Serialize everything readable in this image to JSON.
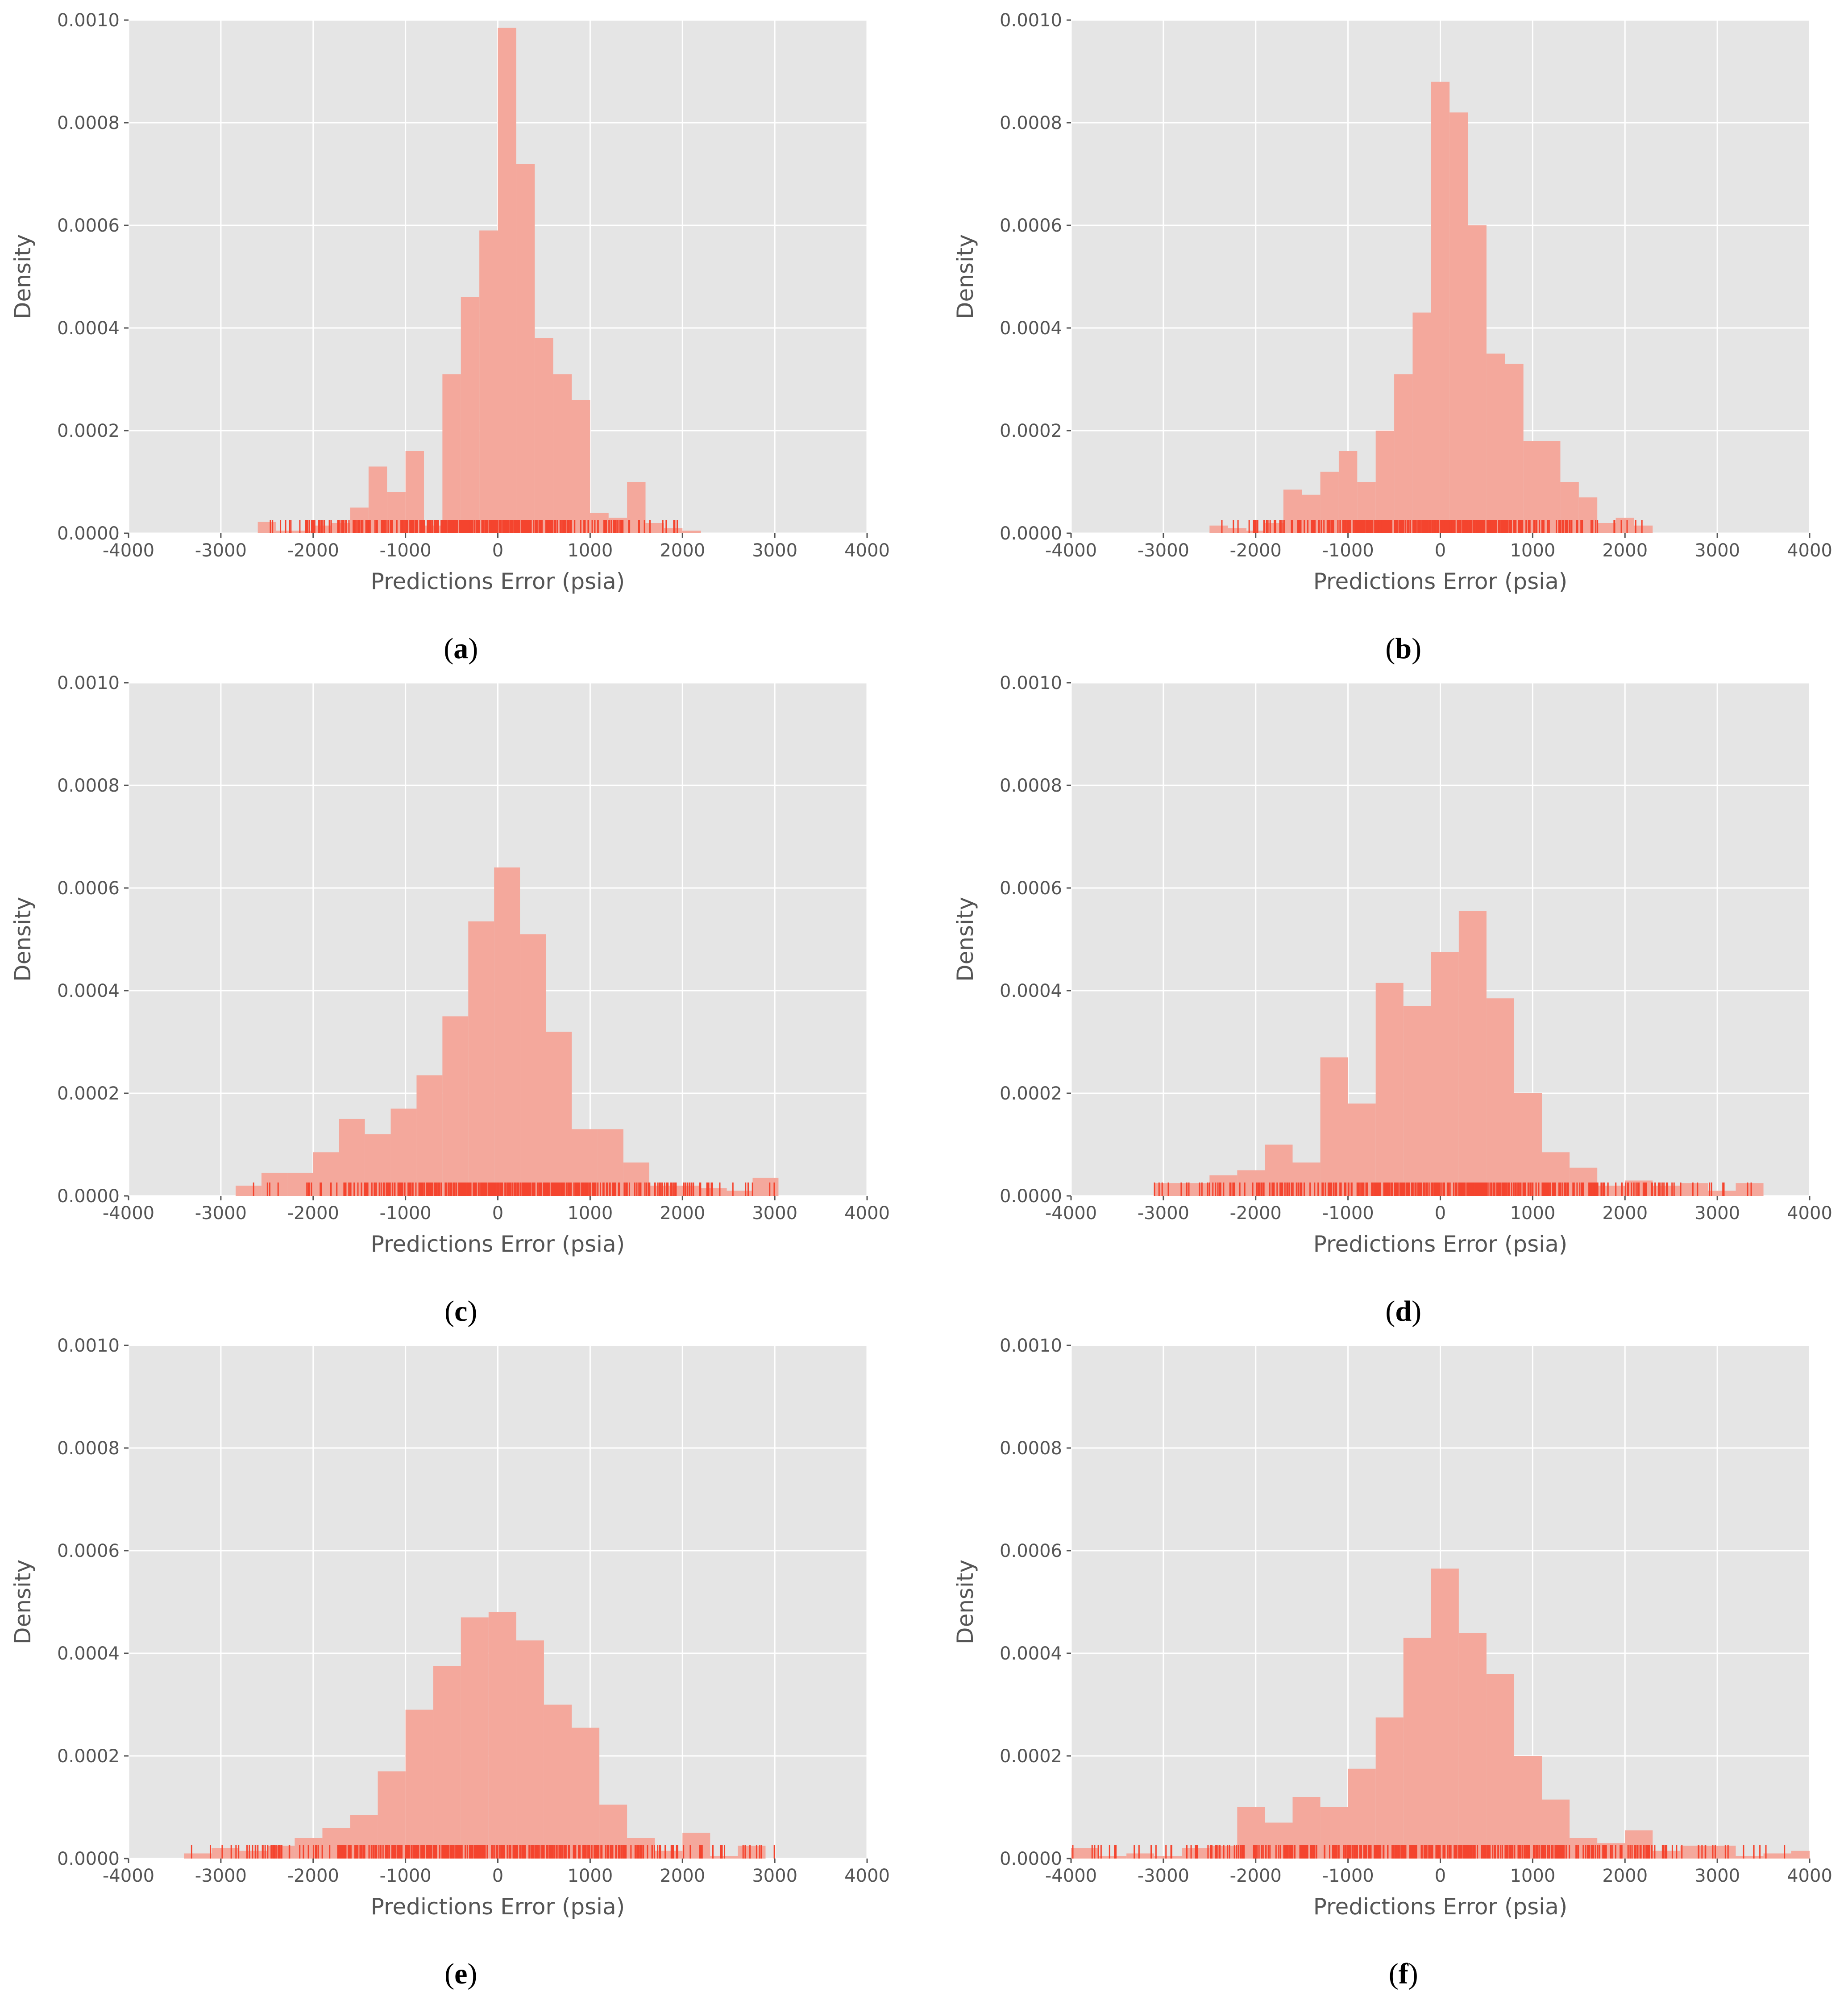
{
  "colors": {
    "plot_background": "#e5e5e5",
    "grid": "#ffffff",
    "bar_fill": "#f4a89c",
    "rug": "#f4442e",
    "text": "#555555"
  },
  "chart_data": [
    {
      "type": "bar",
      "panel": "a",
      "xlabel": "Predictions Error (psia)",
      "ylabel": "Density",
      "xlim": [
        -4000,
        4000
      ],
      "ylim": [
        0,
        0.001
      ],
      "xticks": [
        "-4000",
        "-3000",
        "-2000",
        "-1000",
        "0",
        "1000",
        "2000",
        "3000",
        "4000"
      ],
      "yticks": [
        "0.0000",
        "0.0002",
        "0.0004",
        "0.0006",
        "0.0008",
        "0.0010"
      ],
      "grid": true,
      "bin_width": 200,
      "bins": [
        [
          -2500,
          2.2e-05
        ],
        [
          -2300,
          5e-06
        ],
        [
          -2100,
          5e-06
        ],
        [
          -1900,
          1.5e-05
        ],
        [
          -1700,
          2e-05
        ],
        [
          -1500,
          5e-05
        ],
        [
          -1300,
          0.00013
        ],
        [
          -1100,
          8e-05
        ],
        [
          -900,
          0.00016
        ],
        [
          -700,
          1.5e-05
        ],
        [
          -500,
          0.00031
        ],
        [
          -300,
          0.00046
        ],
        [
          -100,
          0.00059
        ],
        [
          100,
          0.000985
        ],
        [
          300,
          0.00072
        ],
        [
          500,
          0.00038
        ],
        [
          700,
          0.00031
        ],
        [
          900,
          0.00026
        ],
        [
          1100,
          4e-05
        ],
        [
          1300,
          3e-05
        ],
        [
          1500,
          0.0001
        ],
        [
          1700,
          2e-05
        ],
        [
          1900,
          1e-05
        ],
        [
          2100,
          5e-06
        ]
      ],
      "rug_range": [
        -2500,
        2000
      ]
    },
    {
      "type": "bar",
      "panel": "b",
      "xlabel": "Predictions Error (psia)",
      "ylabel": "Density",
      "xlim": [
        -4000,
        4000
      ],
      "ylim": [
        0,
        0.001
      ],
      "xticks": [
        "-4000",
        "-3000",
        "-2000",
        "-1000",
        "0",
        "1000",
        "2000",
        "3000",
        "4000"
      ],
      "yticks": [
        "0.0000",
        "0.0002",
        "0.0004",
        "0.0006",
        "0.0008",
        "0.0010"
      ],
      "grid": true,
      "bin_width": 200,
      "bins": [
        [
          -2400,
          1.5e-05
        ],
        [
          -2200,
          1e-05
        ],
        [
          -2000,
          5e-06
        ],
        [
          -1800,
          2e-05
        ],
        [
          -1600,
          8.5e-05
        ],
        [
          -1400,
          7.5e-05
        ],
        [
          -1200,
          0.00012
        ],
        [
          -1000,
          0.00016
        ],
        [
          -800,
          0.0001
        ],
        [
          -600,
          0.0002
        ],
        [
          -400,
          0.00031
        ],
        [
          -200,
          0.00043
        ],
        [
          0,
          0.00088
        ],
        [
          200,
          0.00082
        ],
        [
          400,
          0.0006
        ],
        [
          600,
          0.00035
        ],
        [
          800,
          0.00033
        ],
        [
          1000,
          0.00018
        ],
        [
          1200,
          0.00018
        ],
        [
          1400,
          0.0001
        ],
        [
          1600,
          7e-05
        ],
        [
          1800,
          2e-05
        ],
        [
          2000,
          3e-05
        ],
        [
          2200,
          1.5e-05
        ]
      ],
      "rug_range": [
        -2400,
        2200
      ]
    },
    {
      "type": "bar",
      "panel": "c",
      "xlabel": "Predictions Error (psia)",
      "ylabel": "Density",
      "xlim": [
        -4000,
        4000
      ],
      "ylim": [
        0,
        0.001
      ],
      "xticks": [
        "-4000",
        "-3000",
        "-2000",
        "-1000",
        "0",
        "1000",
        "2000",
        "3000",
        "4000"
      ],
      "yticks": [
        "0.0000",
        "0.0002",
        "0.0004",
        "0.0006",
        "0.0008",
        "0.0010"
      ],
      "grid": true,
      "bin_width": 280,
      "bins": [
        [
          -2700,
          2e-05
        ],
        [
          -2420,
          4.5e-05
        ],
        [
          -2140,
          4.5e-05
        ],
        [
          -1860,
          8.5e-05
        ],
        [
          -1580,
          0.00015
        ],
        [
          -1300,
          0.00012
        ],
        [
          -1020,
          0.00017
        ],
        [
          -740,
          0.000235
        ],
        [
          -460,
          0.00035
        ],
        [
          -180,
          0.000535
        ],
        [
          100,
          0.00064
        ],
        [
          380,
          0.00051
        ],
        [
          660,
          0.00032
        ],
        [
          940,
          0.00013
        ],
        [
          1220,
          0.00013
        ],
        [
          1500,
          6.5e-05
        ],
        [
          1780,
          2e-05
        ],
        [
          2060,
          2e-05
        ],
        [
          2340,
          1.5e-05
        ],
        [
          2620,
          1e-05
        ],
        [
          2900,
          3.5e-05
        ]
      ],
      "rug_range": [
        -2700,
        3000
      ]
    },
    {
      "type": "bar",
      "panel": "d",
      "xlabel": "Predictions Error (psia)",
      "ylabel": "Density",
      "xlim": [
        -4000,
        4000
      ],
      "ylim": [
        0,
        0.001
      ],
      "xticks": [
        "-4000",
        "-3000",
        "-2000",
        "-1000",
        "0",
        "1000",
        "2000",
        "3000",
        "4000"
      ],
      "yticks": [
        "0.0000",
        "0.0002",
        "0.0004",
        "0.0006",
        "0.0008",
        "0.0010"
      ],
      "grid": true,
      "bin_width": 300,
      "bins": [
        [
          -2950,
          2.5e-05
        ],
        [
          -2650,
          2.5e-05
        ],
        [
          -2350,
          4e-05
        ],
        [
          -2050,
          5e-05
        ],
        [
          -1750,
          0.0001
        ],
        [
          -1450,
          6.5e-05
        ],
        [
          -1150,
          0.00027
        ],
        [
          -850,
          0.00018
        ],
        [
          -550,
          0.000415
        ],
        [
          -250,
          0.00037
        ],
        [
          50,
          0.000475
        ],
        [
          350,
          0.000555
        ],
        [
          650,
          0.000385
        ],
        [
          950,
          0.0002
        ],
        [
          1250,
          8.5e-05
        ],
        [
          1550,
          5.5e-05
        ],
        [
          1850,
          2e-05
        ],
        [
          2150,
          3e-05
        ],
        [
          2450,
          2e-05
        ],
        [
          2750,
          2.5e-05
        ],
        [
          3050,
          1e-05
        ],
        [
          3350,
          2.5e-05
        ]
      ],
      "rug_range": [
        -3100,
        3450
      ]
    },
    {
      "type": "bar",
      "panel": "e",
      "xlabel": "Predictions Error (psia)",
      "ylabel": "Density",
      "xlim": [
        -4000,
        4000
      ],
      "ylim": [
        0,
        0.001
      ],
      "xticks": [
        "-4000",
        "-3000",
        "-2000",
        "-1000",
        "0",
        "1000",
        "2000",
        "3000",
        "4000"
      ],
      "yticks": [
        "0.0000",
        "0.0002",
        "0.0004",
        "0.0006",
        "0.0008",
        "0.0010"
      ],
      "grid": true,
      "bin_width": 300,
      "bins": [
        [
          -3250,
          1e-05
        ],
        [
          -2950,
          2e-05
        ],
        [
          -2650,
          1.5e-05
        ],
        [
          -2350,
          2.5e-05
        ],
        [
          -2050,
          4e-05
        ],
        [
          -1750,
          6e-05
        ],
        [
          -1450,
          8.5e-05
        ],
        [
          -1150,
          0.00017
        ],
        [
          -850,
          0.00029
        ],
        [
          -550,
          0.000375
        ],
        [
          -250,
          0.00047
        ],
        [
          50,
          0.00048
        ],
        [
          350,
          0.000425
        ],
        [
          650,
          0.0003
        ],
        [
          950,
          0.000255
        ],
        [
          1250,
          0.000105
        ],
        [
          1550,
          4e-05
        ],
        [
          1850,
          1.5e-05
        ],
        [
          2150,
          5e-05
        ],
        [
          2450,
          5e-06
        ],
        [
          2750,
          2.5e-05
        ]
      ],
      "rug_range": [
        -3350,
        3000
      ]
    },
    {
      "type": "bar",
      "panel": "f",
      "xlabel": "Predictions Error (psia)",
      "ylabel": "Density",
      "xlim": [
        -4000,
        4000
      ],
      "ylim": [
        0,
        0.001
      ],
      "xticks": [
        "-4000",
        "-3000",
        "-2000",
        "-1000",
        "0",
        "1000",
        "2000",
        "3000",
        "4000"
      ],
      "yticks": [
        "0.0000",
        "0.0002",
        "0.0004",
        "0.0006",
        "0.0008",
        "0.0010"
      ],
      "grid": true,
      "bin_width": 300,
      "bins": [
        [
          -3850,
          2e-05
        ],
        [
          -3550,
          5e-06
        ],
        [
          -3250,
          1e-05
        ],
        [
          -2950,
          5e-06
        ],
        [
          -2650,
          2e-05
        ],
        [
          -2350,
          2.5e-05
        ],
        [
          -2050,
          0.0001
        ],
        [
          -1750,
          7e-05
        ],
        [
          -1450,
          0.00012
        ],
        [
          -1150,
          0.0001
        ],
        [
          -850,
          0.000175
        ],
        [
          -550,
          0.000275
        ],
        [
          -250,
          0.00043
        ],
        [
          50,
          0.000565
        ],
        [
          350,
          0.00044
        ],
        [
          650,
          0.00036
        ],
        [
          950,
          0.0002
        ],
        [
          1250,
          0.000115
        ],
        [
          1550,
          4e-05
        ],
        [
          1850,
          3e-05
        ],
        [
          2150,
          5.5e-05
        ],
        [
          2450,
          1.5e-05
        ],
        [
          2750,
          2.5e-05
        ],
        [
          3050,
          2.5e-05
        ],
        [
          3350,
          5e-06
        ],
        [
          3650,
          1e-05
        ],
        [
          3950,
          1.5e-05
        ]
      ],
      "rug_range": [
        -4000,
        4000
      ]
    }
  ],
  "captions": [
    {
      "open": "(",
      "letter": "a",
      "close": ")"
    },
    {
      "open": "(",
      "letter": "b",
      "close": ")"
    },
    {
      "open": "(",
      "letter": "c",
      "close": ")"
    },
    {
      "open": "(",
      "letter": "d",
      "close": ")"
    },
    {
      "open": "(",
      "letter": "e",
      "close": ")"
    },
    {
      "open": "(",
      "letter": "f",
      "close": ")"
    }
  ]
}
